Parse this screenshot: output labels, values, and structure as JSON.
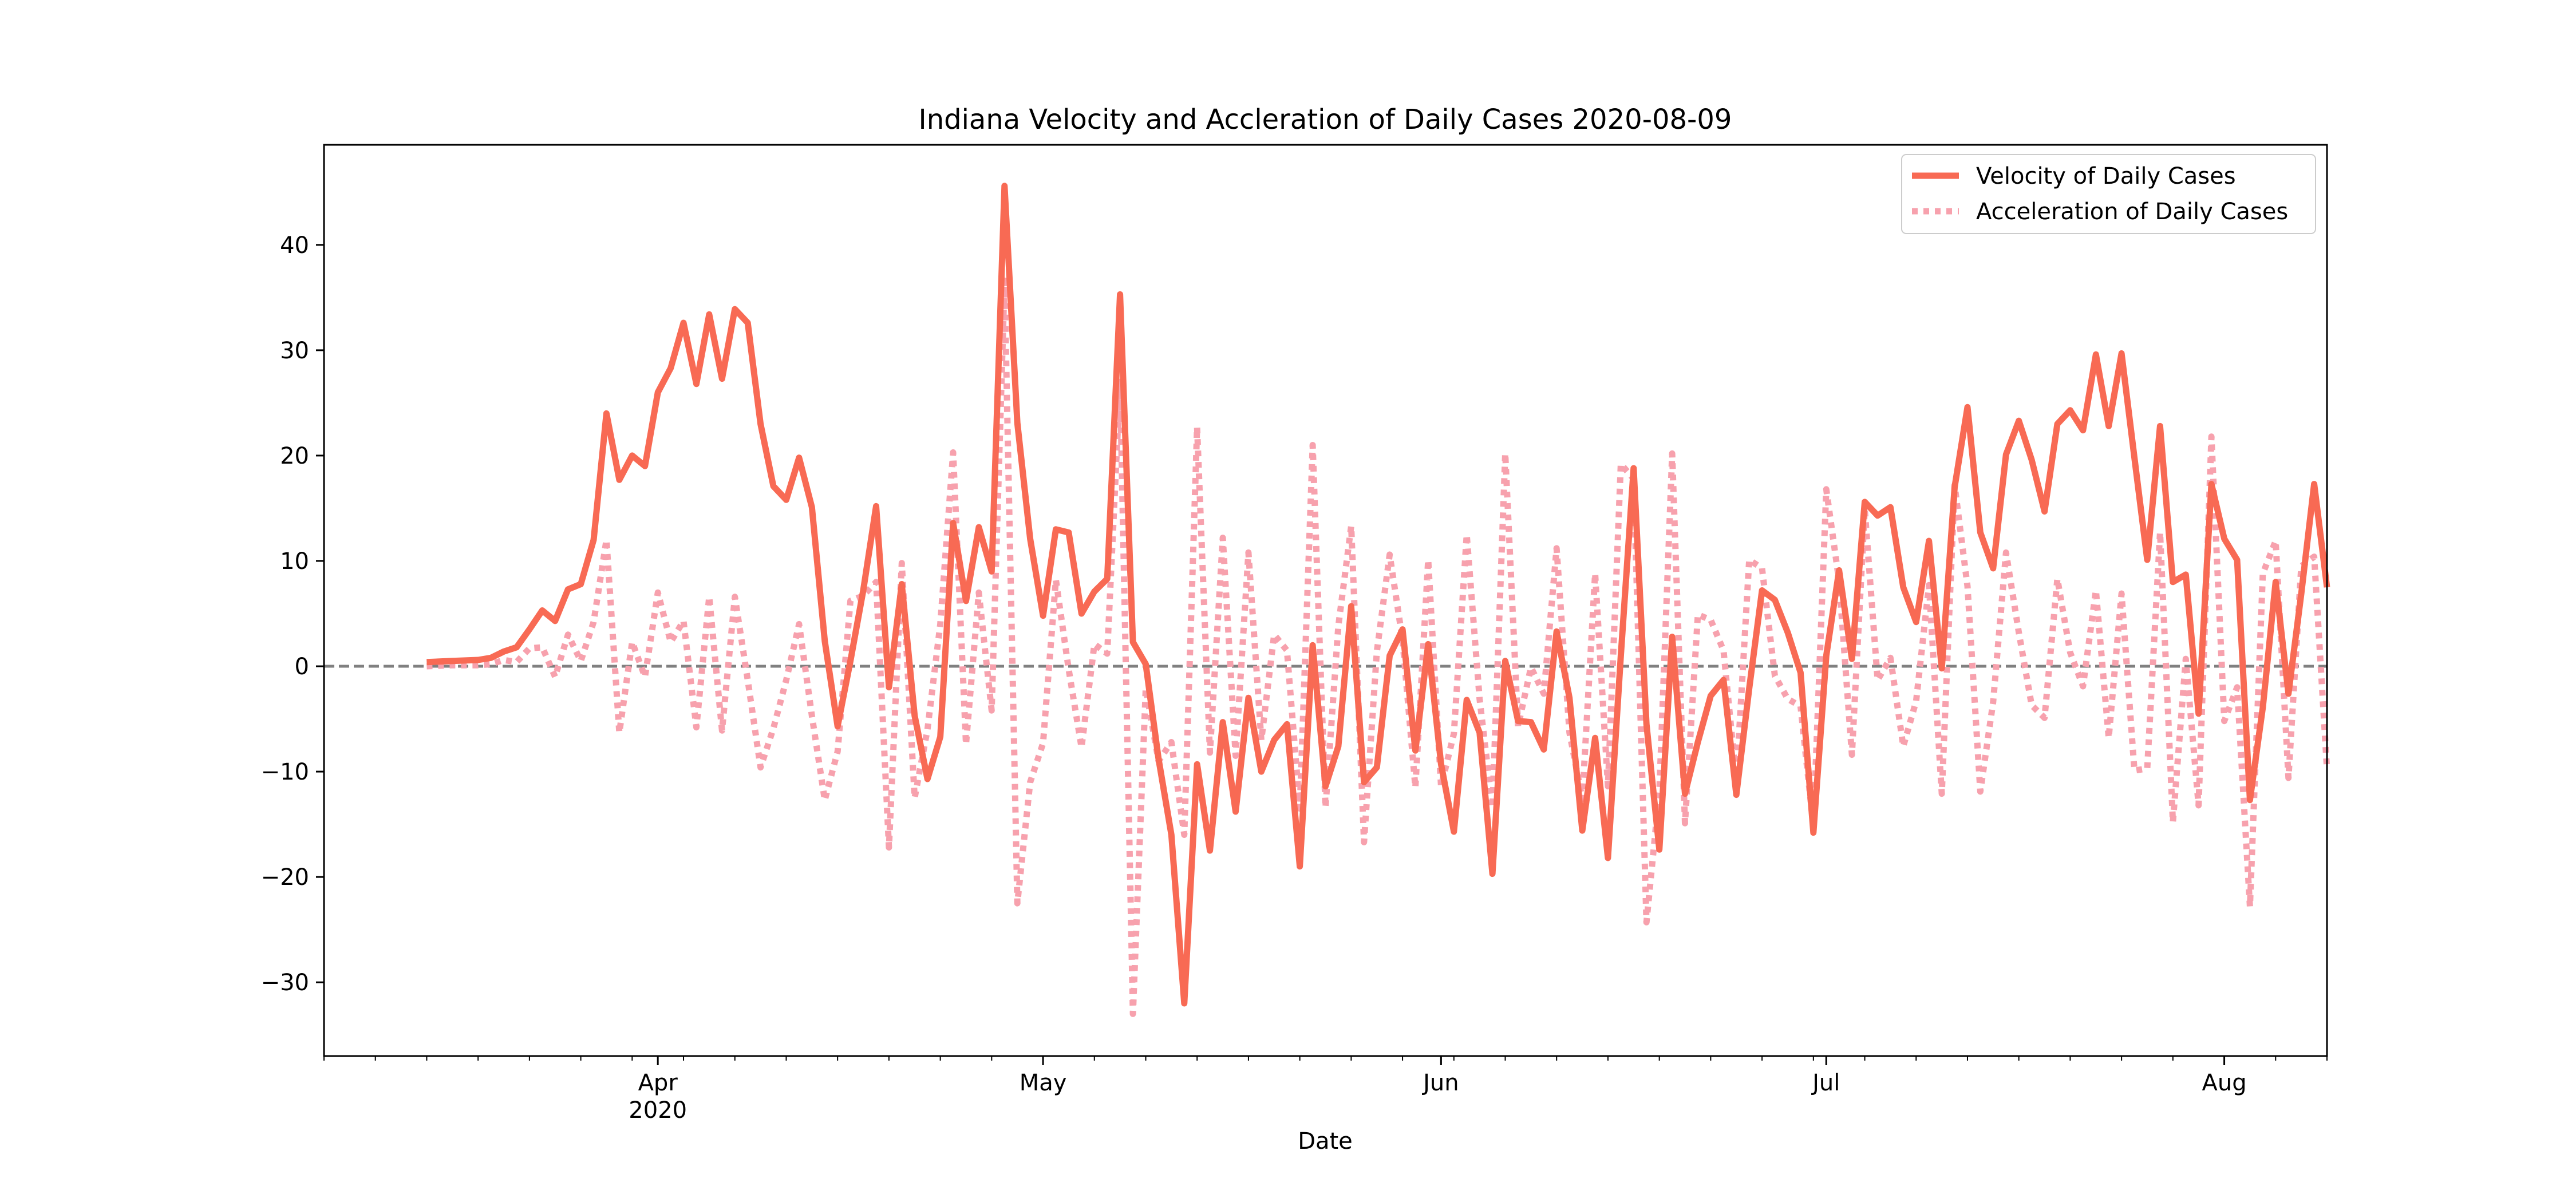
{
  "chart_data": {
    "type": "line",
    "title": "Indiana Velocity and Accleration of Daily Cases 2020-08-09",
    "xlabel": "Date",
    "ylabel": "",
    "x_range": [
      "2020-03-06",
      "2020-08-09"
    ],
    "ylim": [
      -37,
      49.5
    ],
    "y_ticks": [
      -30,
      -20,
      -10,
      0,
      10,
      20,
      30,
      40
    ],
    "y_tick_labels": [
      "−30",
      "−20",
      "−10",
      "0",
      "10",
      "20",
      "30",
      "40"
    ],
    "x_major_ticks": [
      {
        "date": "2020-04-01",
        "label": "Apr",
        "sublabel": "2020"
      },
      {
        "date": "2020-05-01",
        "label": "May",
        "sublabel": ""
      },
      {
        "date": "2020-06-01",
        "label": "Jun",
        "sublabel": ""
      },
      {
        "date": "2020-07-01",
        "label": "Jul",
        "sublabel": ""
      },
      {
        "date": "2020-08-01",
        "label": "Aug",
        "sublabel": ""
      }
    ],
    "x_minor_tick_interval_days": 4,
    "zero_line": {
      "y": 0,
      "style": "dashed",
      "color": "#808080"
    },
    "legend_position": "top-right",
    "series": [
      {
        "name": "Velocity of Daily Cases",
        "style": "solid",
        "color": "#f86a54",
        "x": [
          "2020-03-14",
          "2020-03-16",
          "2020-03-18",
          "2020-03-19",
          "2020-03-20",
          "2020-03-21",
          "2020-03-22",
          "2020-03-23",
          "2020-03-24",
          "2020-03-25",
          "2020-03-26",
          "2020-03-27",
          "2020-03-28",
          "2020-03-29",
          "2020-03-30",
          "2020-03-31",
          "2020-04-01",
          "2020-04-02",
          "2020-04-03",
          "2020-04-04",
          "2020-04-05",
          "2020-04-06",
          "2020-04-07",
          "2020-04-08",
          "2020-04-09",
          "2020-04-10",
          "2020-04-11",
          "2020-04-12",
          "2020-04-13",
          "2020-04-14",
          "2020-04-15",
          "2020-04-16",
          "2020-04-17",
          "2020-04-18",
          "2020-04-19",
          "2020-04-20",
          "2020-04-21",
          "2020-04-22",
          "2020-04-23",
          "2020-04-24",
          "2020-04-25",
          "2020-04-26",
          "2020-04-27",
          "2020-04-28",
          "2020-04-29",
          "2020-04-30",
          "2020-05-01",
          "2020-05-02",
          "2020-05-03",
          "2020-05-04",
          "2020-05-05",
          "2020-05-06",
          "2020-05-07",
          "2020-05-08",
          "2020-05-09",
          "2020-05-10",
          "2020-05-11",
          "2020-05-12",
          "2020-05-13",
          "2020-05-14",
          "2020-05-15",
          "2020-05-16",
          "2020-05-17",
          "2020-05-18",
          "2020-05-19",
          "2020-05-20",
          "2020-05-21",
          "2020-05-22",
          "2020-05-23",
          "2020-05-24",
          "2020-05-25",
          "2020-05-26",
          "2020-05-27",
          "2020-05-28",
          "2020-05-29",
          "2020-05-30",
          "2020-05-31",
          "2020-06-01",
          "2020-06-02",
          "2020-06-03",
          "2020-06-04",
          "2020-06-05",
          "2020-06-06",
          "2020-06-07",
          "2020-06-08",
          "2020-06-09",
          "2020-06-10",
          "2020-06-11",
          "2020-06-12",
          "2020-06-13",
          "2020-06-14",
          "2020-06-15",
          "2020-06-16",
          "2020-06-17",
          "2020-06-18",
          "2020-06-19",
          "2020-06-20",
          "2020-06-21",
          "2020-06-22",
          "2020-06-23",
          "2020-06-24",
          "2020-06-25",
          "2020-06-26",
          "2020-06-27",
          "2020-06-28",
          "2020-06-29",
          "2020-06-30",
          "2020-07-01",
          "2020-07-02",
          "2020-07-03",
          "2020-07-04",
          "2020-07-05",
          "2020-07-06",
          "2020-07-07",
          "2020-07-08",
          "2020-07-09",
          "2020-07-10",
          "2020-07-11",
          "2020-07-12",
          "2020-07-13",
          "2020-07-14",
          "2020-07-15",
          "2020-07-16",
          "2020-07-17",
          "2020-07-18",
          "2020-07-19",
          "2020-07-20",
          "2020-07-21",
          "2020-07-22",
          "2020-07-23",
          "2020-07-24",
          "2020-07-25",
          "2020-07-26",
          "2020-07-27",
          "2020-07-28",
          "2020-07-29",
          "2020-07-30",
          "2020-07-31",
          "2020-08-01",
          "2020-08-02",
          "2020-08-03",
          "2020-08-04",
          "2020-08-05",
          "2020-08-06",
          "2020-08-07",
          "2020-08-08",
          "2020-08-09"
        ],
        "y": [
          0.4,
          0.5,
          0.6,
          0.8,
          1.4,
          1.8,
          3.5,
          5.3,
          4.3,
          7.3,
          7.8,
          12.0,
          24.0,
          17.7,
          20.0,
          19.0,
          26.0,
          28.3,
          32.6,
          26.8,
          33.4,
          27.3,
          33.9,
          32.6,
          23.0,
          17.1,
          15.8,
          19.8,
          15.1,
          2.4,
          -5.7,
          0.5,
          7.2,
          15.2,
          -2.0,
          7.8,
          -4.7,
          -10.7,
          -6.7,
          13.6,
          6.2,
          13.2,
          9.0,
          45.6,
          23.1,
          12.1,
          4.8,
          13.0,
          12.7,
          5.0,
          7.1,
          8.3,
          35.3,
          2.3,
          0.2,
          -8.8,
          -16.0,
          -32.0,
          -9.3,
          -17.5,
          -5.3,
          -13.8,
          -3.0,
          -10.0,
          -7.0,
          -5.5,
          -19.0,
          2.0,
          -11.4,
          -7.6,
          5.7,
          -11.0,
          -9.6,
          1.0,
          3.5,
          -8.0,
          2.1,
          -9.3,
          -15.7,
          -3.2,
          -6.3,
          -19.7,
          0.5,
          -5.2,
          -5.3,
          -7.9,
          3.3,
          -3.0,
          -15.6,
          -6.8,
          -18.2,
          1.0,
          18.8,
          -5.5,
          -17.4,
          2.8,
          -12.1,
          -7.2,
          -2.8,
          -1.3,
          -12.2,
          -2.1,
          7.2,
          6.3,
          3.2,
          -0.6,
          -15.8,
          1.0,
          9.1,
          0.7,
          15.6,
          14.3,
          15.1,
          7.5,
          4.2,
          11.9,
          -0.2,
          17.0,
          24.6,
          12.7,
          9.3,
          20.1,
          23.3,
          19.6,
          14.7,
          23.0,
          24.3,
          22.4,
          29.6,
          22.8,
          29.7,
          19.8,
          10.1,
          22.8,
          8.0,
          8.7,
          -4.5,
          17.3,
          12.1,
          10.1,
          -12.7,
          -3.9,
          8.0,
          -2.6,
          6.9,
          17.3,
          7.5
        ]
      },
      {
        "name": "Acceleration of Daily Cases",
        "style": "dotted",
        "color": "#f7a1ad",
        "x": [
          "2020-03-14",
          "2020-03-16",
          "2020-03-18",
          "2020-03-19",
          "2020-03-20",
          "2020-03-21",
          "2020-03-22",
          "2020-03-23",
          "2020-03-24",
          "2020-03-25",
          "2020-03-26",
          "2020-03-27",
          "2020-03-28",
          "2020-03-29",
          "2020-03-30",
          "2020-03-31",
          "2020-04-01",
          "2020-04-02",
          "2020-04-03",
          "2020-04-04",
          "2020-04-05",
          "2020-04-06",
          "2020-04-07",
          "2020-04-08",
          "2020-04-09",
          "2020-04-10",
          "2020-04-11",
          "2020-04-12",
          "2020-04-13",
          "2020-04-14",
          "2020-04-15",
          "2020-04-16",
          "2020-04-17",
          "2020-04-18",
          "2020-04-19",
          "2020-04-20",
          "2020-04-21",
          "2020-04-22",
          "2020-04-23",
          "2020-04-24",
          "2020-04-25",
          "2020-04-26",
          "2020-04-27",
          "2020-04-28",
          "2020-04-29",
          "2020-04-30",
          "2020-05-01",
          "2020-05-02",
          "2020-05-03",
          "2020-05-04",
          "2020-05-05",
          "2020-05-06",
          "2020-05-07",
          "2020-05-08",
          "2020-05-09",
          "2020-05-10",
          "2020-05-11",
          "2020-05-12",
          "2020-05-13",
          "2020-05-14",
          "2020-05-15",
          "2020-05-16",
          "2020-05-17",
          "2020-05-18",
          "2020-05-19",
          "2020-05-20",
          "2020-05-21",
          "2020-05-22",
          "2020-05-23",
          "2020-05-24",
          "2020-05-25",
          "2020-05-26",
          "2020-05-27",
          "2020-05-28",
          "2020-05-29",
          "2020-05-30",
          "2020-05-31",
          "2020-06-01",
          "2020-06-02",
          "2020-06-03",
          "2020-06-04",
          "2020-06-05",
          "2020-06-06",
          "2020-06-07",
          "2020-06-08",
          "2020-06-09",
          "2020-06-10",
          "2020-06-11",
          "2020-06-12",
          "2020-06-13",
          "2020-06-14",
          "2020-06-15",
          "2020-06-16",
          "2020-06-17",
          "2020-06-18",
          "2020-06-19",
          "2020-06-20",
          "2020-06-21",
          "2020-06-22",
          "2020-06-23",
          "2020-06-24",
          "2020-06-25",
          "2020-06-26",
          "2020-06-27",
          "2020-06-28",
          "2020-06-29",
          "2020-06-30",
          "2020-07-01",
          "2020-07-02",
          "2020-07-03",
          "2020-07-04",
          "2020-07-05",
          "2020-07-06",
          "2020-07-07",
          "2020-07-08",
          "2020-07-09",
          "2020-07-10",
          "2020-07-11",
          "2020-07-12",
          "2020-07-13",
          "2020-07-14",
          "2020-07-15",
          "2020-07-16",
          "2020-07-17",
          "2020-07-18",
          "2020-07-19",
          "2020-07-20",
          "2020-07-21",
          "2020-07-22",
          "2020-07-23",
          "2020-07-24",
          "2020-07-25",
          "2020-07-26",
          "2020-07-27",
          "2020-07-28",
          "2020-07-29",
          "2020-07-30",
          "2020-07-31",
          "2020-08-01",
          "2020-08-02",
          "2020-08-03",
          "2020-08-04",
          "2020-08-05",
          "2020-08-06",
          "2020-08-07",
          "2020-08-08",
          "2020-08-09"
        ],
        "y": [
          0.0,
          0.1,
          0.1,
          0.2,
          0.6,
          0.4,
          1.7,
          1.8,
          -1.0,
          3.0,
          0.5,
          4.2,
          12.0,
          -6.3,
          2.3,
          -1.0,
          7.0,
          2.3,
          4.3,
          -5.8,
          6.6,
          -6.1,
          6.6,
          -1.3,
          -9.6,
          -5.9,
          -1.3,
          4.0,
          -4.7,
          -12.7,
          -8.1,
          6.2,
          6.7,
          8.0,
          -17.2,
          9.8,
          -12.5,
          -6.0,
          4.0,
          20.3,
          -7.4,
          7.0,
          -4.2,
          36.6,
          -22.5,
          -11.0,
          -7.3,
          8.2,
          -0.3,
          -7.7,
          2.1,
          1.2,
          27.0,
          -33.0,
          -2.1,
          -9.0,
          -7.2,
          -16.0,
          22.7,
          -8.2,
          12.2,
          -8.5,
          10.8,
          -7.0,
          3.0,
          1.5,
          -13.5,
          21.0,
          -13.4,
          3.8,
          13.3,
          -16.7,
          1.4,
          10.6,
          2.5,
          -11.5,
          10.1,
          -11.4,
          -6.4,
          12.5,
          -3.1,
          -13.4,
          20.2,
          -5.7,
          -0.1,
          -2.6,
          11.2,
          -6.3,
          -12.6,
          8.8,
          -11.4,
          19.2,
          17.8,
          -24.3,
          -11.9,
          20.2,
          -14.9,
          4.9,
          4.4,
          1.5,
          -10.9,
          10.1,
          9.3,
          -0.9,
          -3.1,
          -3.8,
          -15.2,
          16.8,
          8.1,
          -8.4,
          14.9,
          -1.3,
          0.8,
          -7.6,
          -3.3,
          7.7,
          -12.1,
          17.2,
          7.6,
          -11.9,
          -3.4,
          10.8,
          3.2,
          -3.7,
          -4.9,
          8.3,
          1.3,
          -1.9,
          7.2,
          -6.8,
          6.9,
          -9.9,
          -9.7,
          12.7,
          -14.8,
          0.7,
          -13.2,
          21.8,
          -5.2,
          -2.0,
          -22.8,
          8.8,
          11.9,
          -10.6,
          9.5,
          10.4,
          -9.8
        ]
      }
    ]
  }
}
